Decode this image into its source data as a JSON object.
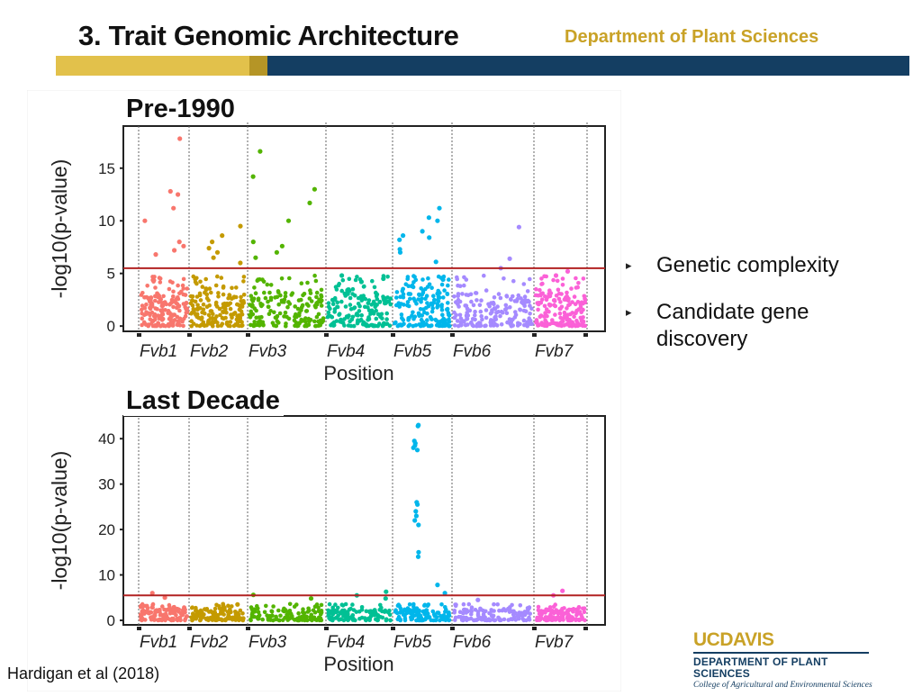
{
  "slide": {
    "title": "3. Trait Genomic Architecture",
    "department": "Department of Plant Sciences",
    "citation": "Hardigan et al (2018)",
    "bullets": [
      "Genetic complexity",
      "Candidate gene discovery"
    ]
  },
  "logo": {
    "uc": "UC",
    "davis": "DAVIS",
    "department": "DEPARTMENT OF PLANT SCIENCES",
    "college": "College of Agricultural and Environmental Sciences"
  },
  "colors": {
    "Fvb1": "#f8766d",
    "Fvb2": "#c49a00",
    "Fvb3": "#53b400",
    "Fvb4": "#00c094",
    "Fvb5": "#00b6eb",
    "Fvb6": "#a58aff",
    "Fvb7": "#fb61d7",
    "threshold": "#b22222",
    "title_gold": "#c9a227",
    "navy": "#143e62"
  },
  "chart_data": [
    {
      "type": "scatter",
      "title": "Pre-1990",
      "xlabel": "Position",
      "ylabel": "-log10(p-value)",
      "categories": [
        "Fvb1",
        "Fvb2",
        "Fvb3",
        "Fvb4",
        "Fvb5",
        "Fvb6",
        "Fvb7"
      ],
      "yticks": [
        0,
        5,
        10,
        15
      ],
      "ylim": [
        -0.5,
        19
      ],
      "threshold": 5.5,
      "series": [
        {
          "name": "Fvb1",
          "max": 17.8,
          "peaks": [
            17.8,
            12.8,
            12.5,
            11.2,
            10.0,
            8.0,
            7.6,
            7.2,
            6.8
          ]
        },
        {
          "name": "Fvb2",
          "max": 9.5,
          "peaks": [
            9.5,
            8.6,
            8.0,
            7.4,
            7.0,
            6.5,
            6.0
          ]
        },
        {
          "name": "Fvb3",
          "max": 16.6,
          "peaks": [
            16.6,
            14.2,
            13.0,
            11.7,
            10.0,
            8.0,
            7.6,
            7.0,
            6.5
          ]
        },
        {
          "name": "Fvb4",
          "max": 4.8,
          "peaks": [
            4.8,
            4.5,
            4.2
          ]
        },
        {
          "name": "Fvb5",
          "max": 11.2,
          "peaks": [
            8.6,
            8.2,
            7.3,
            11.2,
            10.3,
            10.0,
            9.0,
            8.4,
            7.0,
            6.1
          ]
        },
        {
          "name": "Fvb6",
          "max": 9.4,
          "peaks": [
            9.4,
            6.4,
            5.5
          ]
        },
        {
          "name": "Fvb7",
          "max": 5.2,
          "peaks": [
            5.2,
            4.8
          ]
        }
      ]
    },
    {
      "type": "scatter",
      "title": "Last Decade",
      "xlabel": "Position",
      "ylabel": "-log10(p-value)",
      "categories": [
        "Fvb1",
        "Fvb2",
        "Fvb3",
        "Fvb4",
        "Fvb5",
        "Fvb6",
        "Fvb7"
      ],
      "yticks": [
        0,
        10,
        20,
        30,
        40
      ],
      "ylim": [
        -1,
        45
      ],
      "threshold": 5.5,
      "series": [
        {
          "name": "Fvb1",
          "max": 6.0,
          "peaks": [
            6.0,
            5.0
          ]
        },
        {
          "name": "Fvb2",
          "max": 3.5,
          "peaks": [
            3.5
          ]
        },
        {
          "name": "Fvb3",
          "max": 5.6,
          "peaks": [
            5.6,
            4.8
          ]
        },
        {
          "name": "Fvb4",
          "max": 6.3,
          "peaks": [
            6.3,
            5.5,
            4.8
          ]
        },
        {
          "name": "Fvb5",
          "max": 43.0,
          "peaks": [
            43.0,
            42.8,
            39.5,
            39.0,
            38.5,
            38.0,
            37.5,
            26.0,
            25.5,
            24.0,
            23.0,
            22.0,
            21.0,
            15.0,
            14.0,
            7.8,
            6.0
          ]
        },
        {
          "name": "Fvb6",
          "max": 4.5,
          "peaks": [
            4.5
          ]
        },
        {
          "name": "Fvb7",
          "max": 6.5,
          "peaks": [
            6.5,
            5.5
          ]
        }
      ]
    }
  ]
}
